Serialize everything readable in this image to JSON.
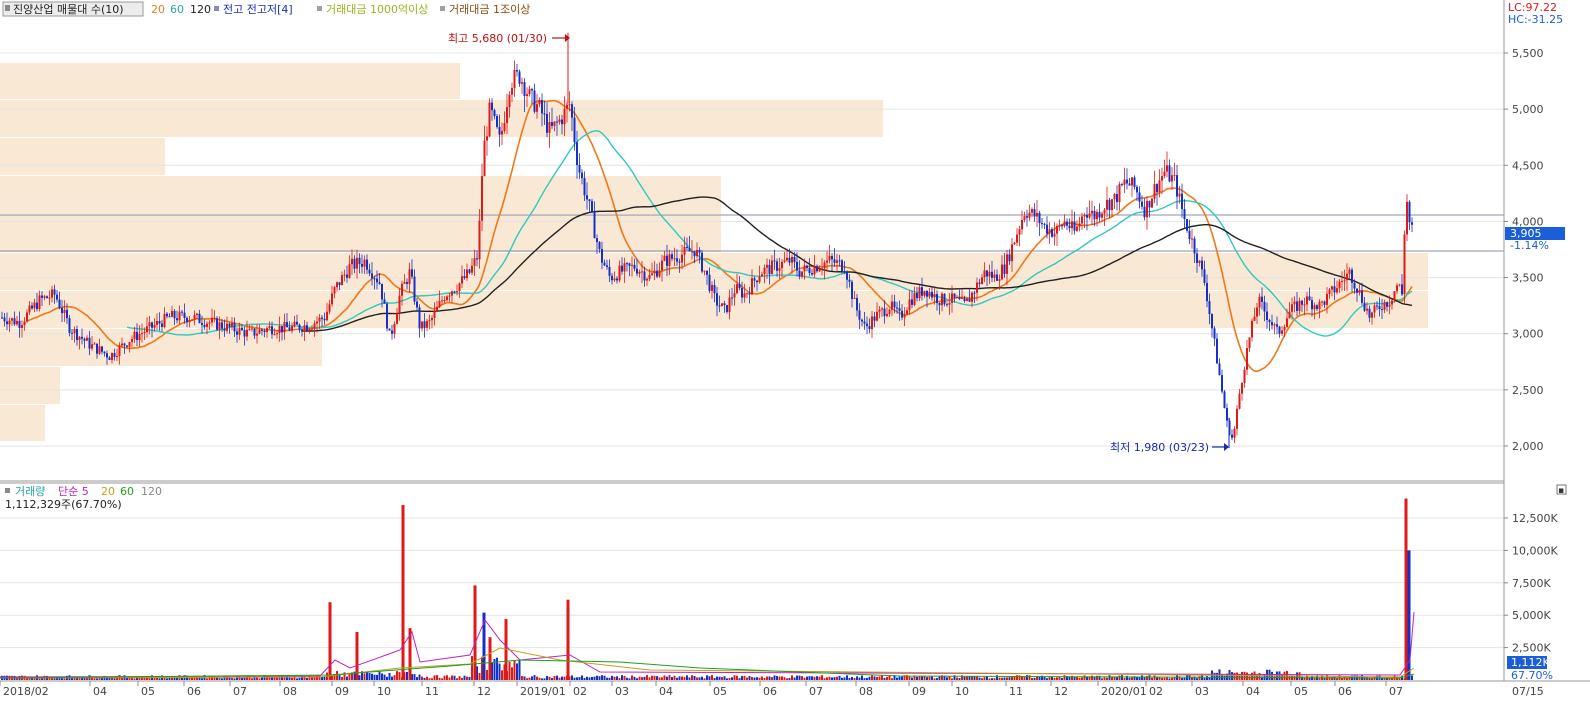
{
  "price_legend": {
    "name": "진양산업 매물대 수(10)",
    "ma20": "20",
    "ma60": "60",
    "ma120": "120",
    "prev_high_low": "전고 전고저[4]",
    "amount_1000": "거래대금 1000억이상",
    "amount_1t": "거래대금 1조이상"
  },
  "volume_legend": {
    "name": "거래량",
    "simple": "단순 5",
    "ma20": "20",
    "ma60": "60",
    "ma120": "120",
    "current": "1,112,329주(67.70%)"
  },
  "top_right": {
    "lc": "LC:97.22",
    "hc": "HC:-31.25"
  },
  "current_price": {
    "value": "3,905",
    "change": "-1.14%"
  },
  "current_volume": {
    "value": "1,112K",
    "pct": "67.70%"
  },
  "annotations": {
    "high": "최고 5,680 (01/30)",
    "low": "최저 1,980 (03/23)"
  },
  "corner_button": "▪",
  "colors": {
    "up": "#e01818",
    "down": "#1430c8",
    "ma20": "#f07818",
    "ma60": "#30c8c0",
    "ma120": "#202020",
    "volume_profile": "#f8e8d4",
    "grid": "#e4e4e4",
    "axis_label": "#444444",
    "current_box": "#1a5fd8"
  },
  "chart_data": [
    {
      "type": "candlestick",
      "x_axis": {
        "tick_labels": [
          "2018/02",
          "04",
          "05",
          "06",
          "07",
          "08",
          "09",
          "10",
          "11",
          "12",
          "2019/01",
          "02",
          "03",
          "04",
          "05",
          "06",
          "07",
          "08",
          "09",
          "10",
          "11",
          "12",
          "2020/01",
          "02",
          "03",
          "04",
          "05",
          "06",
          "07",
          "07/15"
        ]
      },
      "y_axis": {
        "tick_labels": [
          "5,500",
          "5,000",
          "4,500",
          "4,000",
          "3,500",
          "3,000",
          "2,500",
          "2,000"
        ],
        "range": [
          1700,
          5850
        ]
      },
      "price_path": [
        [
          0,
          3150
        ],
        [
          20,
          3100
        ],
        [
          40,
          3300
        ],
        [
          55,
          3350
        ],
        [
          70,
          3050
        ],
        [
          90,
          2900
        ],
        [
          110,
          2800
        ],
        [
          130,
          2950
        ],
        [
          150,
          3050
        ],
        [
          170,
          3150
        ],
        [
          190,
          3150
        ],
        [
          210,
          3100
        ],
        [
          230,
          3050
        ],
        [
          250,
          3000
        ],
        [
          270,
          3050
        ],
        [
          290,
          3050
        ],
        [
          310,
          3080
        ],
        [
          325,
          3150
        ],
        [
          335,
          3400
        ],
        [
          350,
          3600
        ],
        [
          365,
          3650
        ],
        [
          380,
          3450
        ],
        [
          390,
          2950
        ],
        [
          400,
          3350
        ],
        [
          410,
          3550
        ],
        [
          420,
          3050
        ],
        [
          430,
          3100
        ],
        [
          445,
          3350
        ],
        [
          460,
          3450
        ],
        [
          470,
          3550
        ],
        [
          478,
          3700
        ],
        [
          483,
          4600
        ],
        [
          490,
          5000
        ],
        [
          500,
          4700
        ],
        [
          510,
          5250
        ],
        [
          520,
          5300
        ],
        [
          530,
          5100
        ],
        [
          540,
          5000
        ],
        [
          550,
          4800
        ],
        [
          560,
          4900
        ],
        [
          570,
          5050
        ],
        [
          578,
          4500
        ],
        [
          590,
          4100
        ],
        [
          600,
          3700
        ],
        [
          610,
          3500
        ],
        [
          620,
          3550
        ],
        [
          635,
          3600
        ],
        [
          650,
          3500
        ],
        [
          665,
          3650
        ],
        [
          680,
          3700
        ],
        [
          695,
          3750
        ],
        [
          705,
          3550
        ],
        [
          715,
          3300
        ],
        [
          725,
          3200
        ],
        [
          735,
          3400
        ],
        [
          745,
          3350
        ],
        [
          760,
          3550
        ],
        [
          775,
          3600
        ],
        [
          790,
          3650
        ],
        [
          800,
          3550
        ],
        [
          815,
          3600
        ],
        [
          830,
          3650
        ],
        [
          845,
          3600
        ],
        [
          855,
          3250
        ],
        [
          865,
          3050
        ],
        [
          875,
          3150
        ],
        [
          890,
          3250
        ],
        [
          900,
          3150
        ],
        [
          910,
          3300
        ],
        [
          925,
          3400
        ],
        [
          940,
          3300
        ],
        [
          955,
          3300
        ],
        [
          965,
          3250
        ],
        [
          975,
          3400
        ],
        [
          985,
          3550
        ],
        [
          995,
          3500
        ],
        [
          1005,
          3600
        ],
        [
          1015,
          3850
        ],
        [
          1025,
          4100
        ],
        [
          1035,
          4050
        ],
        [
          1045,
          3950
        ],
        [
          1055,
          3900
        ],
        [
          1065,
          4000
        ],
        [
          1075,
          3900
        ],
        [
          1085,
          4100
        ],
        [
          1095,
          4050
        ],
        [
          1105,
          4150
        ],
        [
          1115,
          4200
        ],
        [
          1125,
          4350
        ],
        [
          1135,
          4300
        ],
        [
          1145,
          4100
        ],
        [
          1155,
          4300
        ],
        [
          1165,
          4450
        ],
        [
          1175,
          4350
        ],
        [
          1185,
          4000
        ],
        [
          1195,
          3750
        ],
        [
          1205,
          3450
        ],
        [
          1212,
          3050
        ],
        [
          1220,
          2600
        ],
        [
          1227,
          2200
        ],
        [
          1233,
          2050
        ],
        [
          1240,
          2500
        ],
        [
          1248,
          2900
        ],
        [
          1258,
          3300
        ],
        [
          1268,
          3150
        ],
        [
          1278,
          3000
        ],
        [
          1290,
          3200
        ],
        [
          1305,
          3300
        ],
        [
          1320,
          3250
        ],
        [
          1335,
          3400
        ],
        [
          1350,
          3550
        ],
        [
          1360,
          3350
        ],
        [
          1370,
          3150
        ],
        [
          1380,
          3250
        ],
        [
          1390,
          3300
        ],
        [
          1398,
          3450
        ],
        [
          1402,
          3350
        ],
        [
          1406,
          4250
        ],
        [
          1410,
          3950
        ],
        [
          1414,
          3900
        ]
      ]
    },
    {
      "type": "bar",
      "title": "거래량",
      "y_axis": {
        "tick_labels": [
          "12,500K",
          "10,000K",
          "7,500K",
          "5,000K",
          "2,500K"
        ],
        "range": [
          0,
          14500
        ]
      },
      "spikes": [
        [
          330,
          6000
        ],
        [
          357,
          3700
        ],
        [
          403,
          13500
        ],
        [
          410,
          4000
        ],
        [
          475,
          7300
        ],
        [
          484,
          5200
        ],
        [
          490,
          3300
        ],
        [
          506,
          4700
        ],
        [
          568,
          6200
        ],
        [
          1406,
          14000
        ],
        [
          1409,
          10000
        ]
      ]
    }
  ]
}
